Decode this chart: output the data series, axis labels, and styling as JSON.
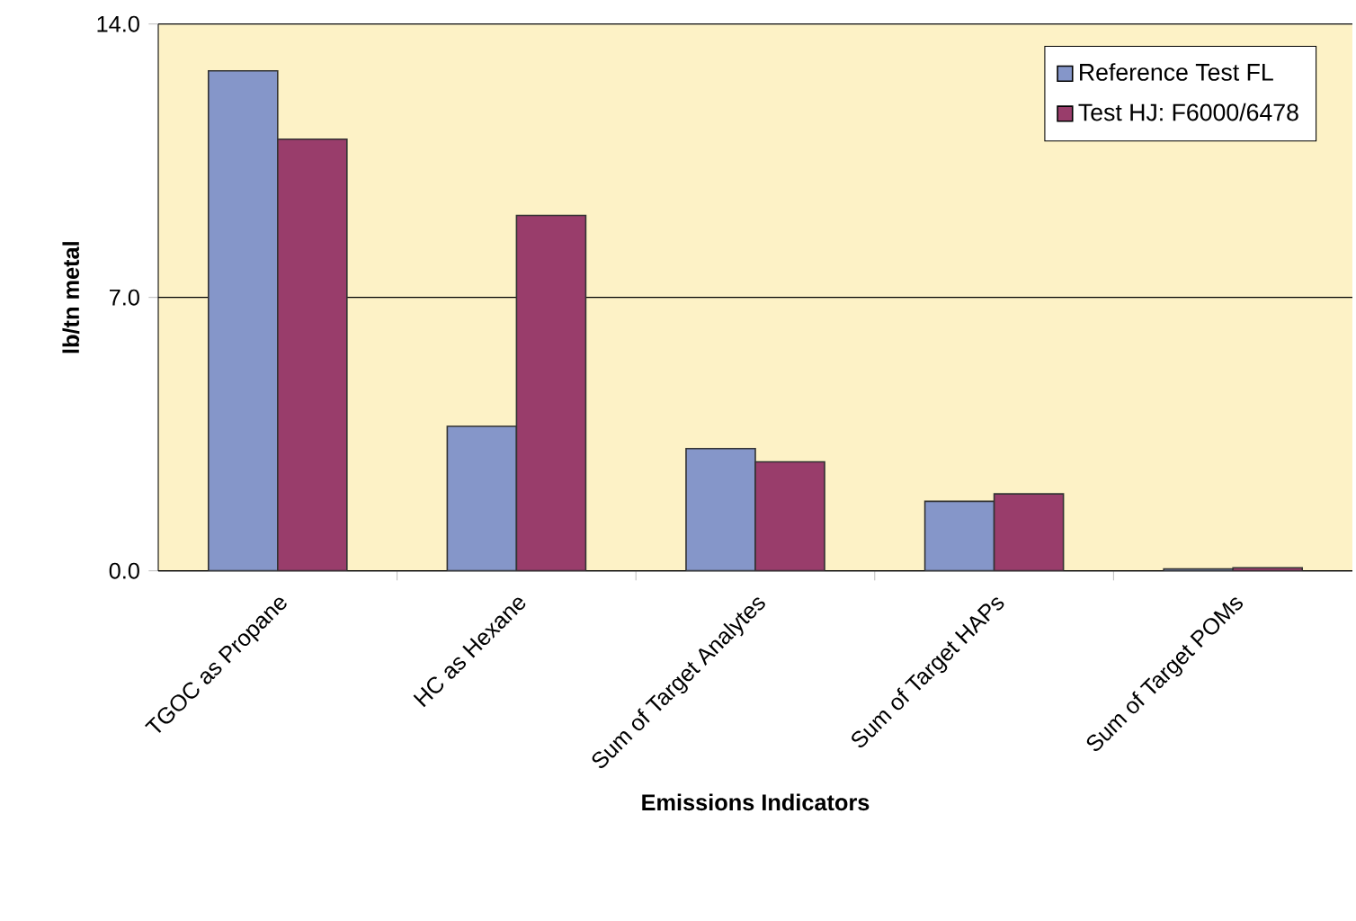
{
  "chart_data": {
    "type": "bar",
    "xlabel": "Emissions Indicators",
    "ylabel": "lb/tn metal",
    "categories": [
      "TGOC as Propane",
      "HC as Hexane",
      "Sum of Target Analytes",
      "Sum of Target HAPs",
      "Sum of Target POMs"
    ],
    "series": [
      {
        "name": "Reference Test FL",
        "color": "#8596c9",
        "values": [
          12.8,
          3.7,
          3.13,
          1.78,
          0.05
        ]
      },
      {
        "name": "Test HJ: F6000/6478",
        "color": "#993d6b",
        "values": [
          11.05,
          9.1,
          2.79,
          1.97,
          0.08
        ]
      }
    ],
    "ylim": [
      0,
      14
    ],
    "yticks": [
      {
        "value": 0,
        "label": "0.0"
      },
      {
        "value": 7,
        "label": "7.0"
      },
      {
        "value": 14,
        "label": "14.0"
      }
    ],
    "grid": "y",
    "legend": "top right"
  }
}
